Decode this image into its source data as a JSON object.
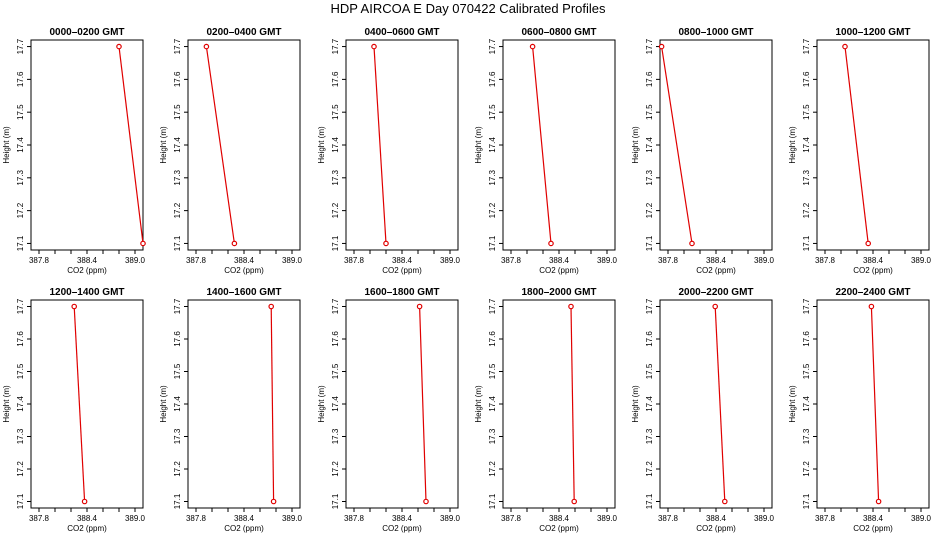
{
  "title": "HDP  AIRCOA E  Day 070422  Calibrated Profiles",
  "chart_data": {
    "type": "line",
    "xlabel": "CO2 (ppm)",
    "ylabel": "Height (m)",
    "xlim": [
      387.7,
      389.1
    ],
    "ylim": [
      17.08,
      17.72
    ],
    "xticks": [
      "387.8",
      "388.4",
      "389.0"
    ],
    "xticks_minor": [
      388.0,
      388.2,
      388.6,
      388.8
    ],
    "yticks": [
      "17.1",
      "17.2",
      "17.3",
      "17.4",
      "17.5",
      "17.6",
      "17.7"
    ],
    "grid": false,
    "panels": [
      {
        "title": "0000–0200 GMT",
        "x": [
          388.8,
          389.1
        ],
        "y": [
          17.7,
          17.1
        ]
      },
      {
        "title": "0200–0400 GMT",
        "x": [
          387.93,
          388.28
        ],
        "y": [
          17.7,
          17.1
        ]
      },
      {
        "title": "0400–0600 GMT",
        "x": [
          388.05,
          388.2
        ],
        "y": [
          17.7,
          17.1
        ]
      },
      {
        "title": "0600–0800 GMT",
        "x": [
          388.07,
          388.3
        ],
        "y": [
          17.7,
          17.1
        ]
      },
      {
        "title": "0800–1000 GMT",
        "x": [
          387.72,
          388.1
        ],
        "y": [
          17.7,
          17.1
        ]
      },
      {
        "title": "1000–1200 GMT",
        "x": [
          388.05,
          388.34
        ],
        "y": [
          17.7,
          17.1
        ]
      },
      {
        "title": "1200–1400 GMT",
        "x": [
          388.24,
          388.37
        ],
        "y": [
          17.7,
          17.1
        ]
      },
      {
        "title": "1400–1600 GMT",
        "x": [
          388.74,
          388.77
        ],
        "y": [
          17.7,
          17.1
        ]
      },
      {
        "title": "1600–1800 GMT",
        "x": [
          388.62,
          388.7
        ],
        "y": [
          17.7,
          17.1
        ]
      },
      {
        "title": "1800–2000 GMT",
        "x": [
          388.55,
          388.59
        ],
        "y": [
          17.7,
          17.1
        ]
      },
      {
        "title": "2000–2200 GMT",
        "x": [
          388.39,
          388.51
        ],
        "y": [
          17.7,
          17.1
        ]
      },
      {
        "title": "2200–2400 GMT",
        "x": [
          388.38,
          388.47
        ],
        "y": [
          17.7,
          17.1
        ]
      }
    ]
  }
}
